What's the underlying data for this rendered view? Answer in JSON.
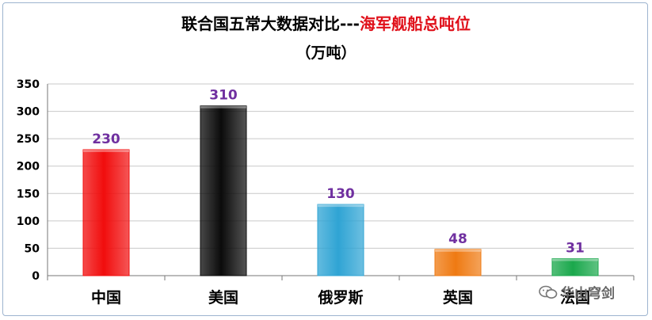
{
  "title_main": "联合国五常大数据对比---",
  "title_highlight": "海军舰船总吨位",
  "subtitle": "（万吨）",
  "watermark": "华山穹剑",
  "chart_data": {
    "type": "bar",
    "title": "联合国五常大数据对比---海军舰船总吨位",
    "subtitle": "（万吨）",
    "categories": [
      "中国",
      "美国",
      "俄罗斯",
      "英国",
      "法国"
    ],
    "values": [
      230,
      310,
      130,
      48,
      31
    ],
    "data_labels": [
      "230",
      "310",
      "130",
      "48",
      "31"
    ],
    "bar_colors": [
      "#f10d0d",
      "#0b0b0b",
      "#2fa4d4",
      "#ef7a12",
      "#1aa84c"
    ],
    "ylim": [
      0,
      350
    ],
    "yticks": [
      0,
      50,
      100,
      150,
      200,
      250,
      300,
      350
    ],
    "grid": true,
    "legend": "none",
    "label_color": "#7030a0"
  }
}
